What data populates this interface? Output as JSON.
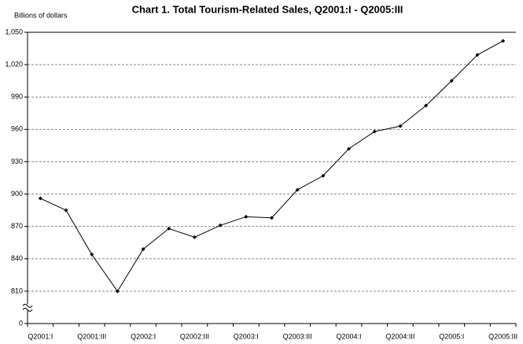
{
  "chart_data": {
    "type": "line",
    "title": "Chart 1.  Total Tourism-Related Sales, Q2001:I - Q2005:III",
    "y_axis_label": "Billions of dollars",
    "categories": [
      "Q2001:I",
      null,
      "Q2001:III",
      null,
      "Q2002:I",
      null,
      "Q2002:III",
      null,
      "Q2003:I",
      null,
      "Q2003:III",
      null,
      "Q2004:I",
      null,
      "Q2004:III",
      null,
      "Q2005:I",
      null,
      "Q2005:III"
    ],
    "series": [
      {
        "name": "Total tourism-related sales",
        "color": "#000000",
        "values": [
          896,
          885,
          844,
          806,
          849,
          868,
          860,
          871,
          879,
          878,
          904,
          917,
          942,
          958,
          963,
          982,
          1005,
          1029,
          1042
        ]
      }
    ],
    "ylim": [
      0,
      1050
    ],
    "yticks": [
      0,
      810,
      840,
      870,
      {
        "value": 900,
        "label": "900"
      },
      930,
      960,
      990,
      {
        "value": 1020,
        "label": "1,020"
      },
      {
        "value": 1050,
        "label": "1,050"
      }
    ],
    "axis_break": true,
    "grid": true
  }
}
